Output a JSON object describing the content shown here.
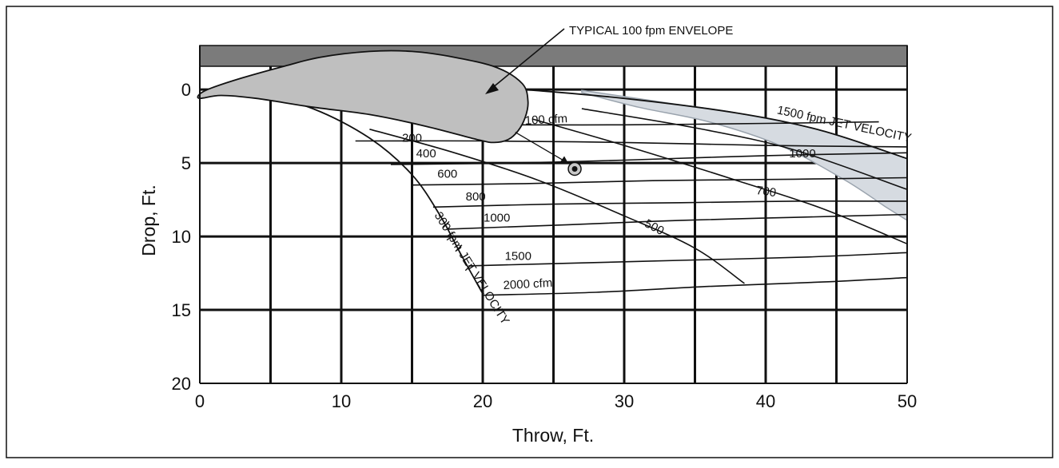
{
  "chart_data": {
    "type": "line",
    "title": "",
    "xlabel": "Throw, Ft.",
    "ylabel": "Drop, Ft.",
    "xlim": [
      0,
      50
    ],
    "ylim": [
      20,
      -3
    ],
    "x_ticks": [
      0,
      10,
      20,
      30,
      40,
      50
    ],
    "y_ticks": [
      0,
      5,
      10,
      15,
      20
    ],
    "grid": true,
    "grid_step": {
      "x": 5,
      "y": 5
    },
    "ceiling": true,
    "colors": {
      "ceiling": "#7b7b7b",
      "envelope": "#bfbfbf",
      "jet_velocity_band": "#d6dbe1",
      "line": "#111111",
      "grid": "#111111"
    },
    "annotations": {
      "envelope_label": "TYPICAL 100 fpm ENVELOPE",
      "jet_velocity_high": "1500 fpm  JET VELOCITY",
      "jet_velocity_low": "300 fpm  JET VELOCITY"
    },
    "envelope": {
      "name": "TYPICAL 100 fpm ENVELOPE",
      "points": [
        [
          0,
          0.3
        ],
        [
          0.8,
          -0.1
        ],
        [
          3,
          -0.8
        ],
        [
          6,
          -1.6
        ],
        [
          8.5,
          -2.2
        ],
        [
          12,
          -2.6
        ],
        [
          15,
          -2.6
        ],
        [
          18,
          -2.2
        ],
        [
          21,
          -1.5
        ],
        [
          22.8,
          -0.4
        ],
        [
          23.2,
          0.8
        ],
        [
          23,
          1.9
        ],
        [
          22.5,
          2.8
        ],
        [
          21.8,
          3.4
        ],
        [
          20.8,
          3.6
        ],
        [
          19.6,
          3.4
        ],
        [
          16,
          2.5
        ],
        [
          12,
          1.7
        ],
        [
          8,
          1.2
        ],
        [
          4,
          0.6
        ],
        [
          1.5,
          0.4
        ],
        [
          0,
          0.6
        ]
      ]
    },
    "jet_velocity_curves": [
      {
        "name": "1500 fpm  JET VELOCITY",
        "points": [
          [
            23,
            0
          ],
          [
            30,
            0.6
          ],
          [
            38,
            1.6
          ],
          [
            44,
            2.8
          ],
          [
            50,
            4.7
          ]
        ]
      },
      {
        "name": "300 fpm  JET VELOCITY",
        "points": [
          [
            0,
            0
          ],
          [
            4,
            0.3
          ],
          [
            8,
            1.3
          ],
          [
            12,
            3.3
          ],
          [
            15,
            5.8
          ],
          [
            17,
            8.6
          ],
          [
            18.5,
            11.3
          ],
          [
            20,
            13.9
          ]
        ]
      }
    ],
    "cfm_curves": [
      {
        "name": "100 cfm",
        "label": "100 cfm",
        "points": [
          [
            21,
            2.4
          ],
          [
            30,
            2.4
          ],
          [
            40,
            2.3
          ],
          [
            48,
            2.2
          ]
        ]
      },
      {
        "name": "200",
        "label": "200",
        "points": [
          [
            11,
            3.5
          ],
          [
            20,
            3.5
          ],
          [
            30,
            3.6
          ],
          [
            40,
            3.8
          ],
          [
            50,
            3.9
          ]
        ]
      },
      {
        "name": "400",
        "label": "400",
        "points": [
          [
            13.5,
            5.1
          ],
          [
            22,
            5
          ],
          [
            30,
            4.8
          ],
          [
            40,
            4.5
          ],
          [
            50,
            4.3
          ]
        ]
      },
      {
        "name": "600",
        "label": "600",
        "points": [
          [
            15,
            6.5
          ],
          [
            23,
            6.4
          ],
          [
            32,
            6.2
          ],
          [
            42,
            6.1
          ],
          [
            50,
            6.0
          ]
        ]
      },
      {
        "name": "800",
        "label": "800",
        "points": [
          [
            16.5,
            8.0
          ],
          [
            25,
            7.8
          ],
          [
            34,
            7.7
          ],
          [
            42,
            7.6
          ],
          [
            50,
            7.6
          ]
        ]
      },
      {
        "name": "1000",
        "label": "1000",
        "points": [
          [
            17.5,
            9.5
          ],
          [
            26,
            9.2
          ],
          [
            34,
            8.9
          ],
          [
            42,
            8.7
          ],
          [
            50,
            8.5
          ]
        ]
      },
      {
        "name": "1500",
        "label": "1500",
        "points": [
          [
            19,
            12.0
          ],
          [
            27,
            11.8
          ],
          [
            35,
            11.6
          ],
          [
            43,
            11.4
          ],
          [
            50,
            11.1
          ]
        ]
      },
      {
        "name": "2000 cfm",
        "label": "2000 cfm",
        "points": [
          [
            20,
            14.0
          ],
          [
            28,
            13.8
          ],
          [
            36,
            13.4
          ],
          [
            44,
            13.1
          ],
          [
            50,
            12.8
          ]
        ]
      }
    ],
    "fpm_curves": [
      {
        "name": "1000",
        "label": "1000",
        "points": [
          [
            27,
            1.3
          ],
          [
            35,
            2.6
          ],
          [
            42,
            4.1
          ],
          [
            50,
            6.8
          ]
        ]
      },
      {
        "name": "700",
        "label": "700",
        "points": [
          [
            23.5,
            2.0
          ],
          [
            30,
            3.8
          ],
          [
            38,
            6.2
          ],
          [
            44,
            8.1
          ],
          [
            50,
            10.5
          ]
        ]
      },
      {
        "name": "500",
        "label": "500",
        "points": [
          [
            12,
            2.7
          ],
          [
            18,
            4.3
          ],
          [
            24,
            6.2
          ],
          [
            30,
            8.6
          ],
          [
            35,
            10.8
          ],
          [
            38.5,
            13.2
          ]
        ]
      }
    ],
    "marker": {
      "name": "target point",
      "x": 26.5,
      "y": 5.4
    }
  }
}
